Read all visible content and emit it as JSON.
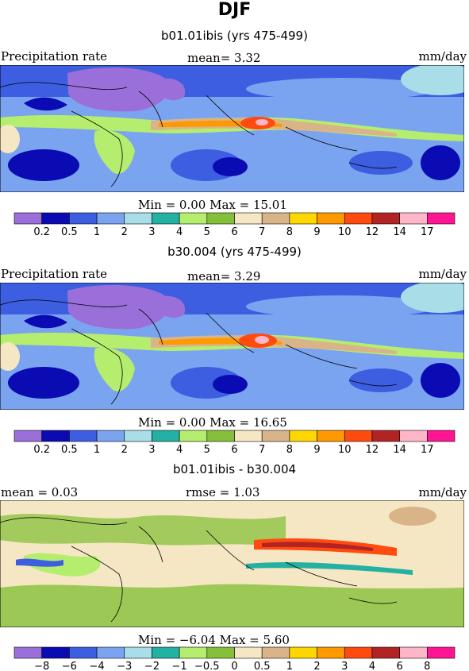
{
  "figure": {
    "title": "DJF"
  },
  "colorbar": {
    "precip_labels": [
      "0.2",
      "0.5",
      "1",
      "2",
      "3",
      "4",
      "5",
      "6",
      "7",
      "8",
      "9",
      "10",
      "12",
      "14",
      "17"
    ],
    "precip_colors": [
      "#9a6fd9",
      "#0b0bb3",
      "#3d5ee0",
      "#7aa4ef",
      "#a9dde8",
      "#22b1a3",
      "#b5ee6e",
      "#86c03a",
      "#f6e7c4",
      "#d9b489",
      "#ffd700",
      "#ff9900",
      "#ff4b10",
      "#b22424",
      "#ffb6c8",
      "#ff1493"
    ],
    "diff_labels": [
      "−8",
      "−6",
      "−4",
      "−3",
      "−2",
      "−1",
      "−0.5",
      "0",
      "0.5",
      "1",
      "2",
      "3",
      "4",
      "6",
      "8"
    ],
    "diff_colors": [
      "#9a6fd9",
      "#0b0bb3",
      "#3d5ee0",
      "#7aa4ef",
      "#a9dde8",
      "#22b1a3",
      "#b5ee6e",
      "#86c03a",
      "#f6e7c4",
      "#d9b489",
      "#ffd700",
      "#ff9900",
      "#ff4b10",
      "#b22424",
      "#ffb6c8",
      "#ff1493"
    ]
  },
  "panels": [
    {
      "subtitle": "b01.01ibis (yrs 475-499)",
      "left_label": "Precipitation rate",
      "mid_label": "mean=   3.32",
      "right_label": "mm/day",
      "minmax": "Min =   0.00 Max =  15.01"
    },
    {
      "subtitle": "b30.004 (yrs 475-499)",
      "left_label": "Precipitation rate",
      "mid_label": "mean=   3.29",
      "right_label": "mm/day",
      "minmax": "Min =   0.00 Max =  16.65"
    },
    {
      "subtitle": "b01.01ibis - b30.004",
      "left_label": "mean =   0.03",
      "mid_label": "rmse =   1.03",
      "right_label": "mm/day",
      "minmax": "Min =  −6.04 Max =   5.60"
    }
  ]
}
